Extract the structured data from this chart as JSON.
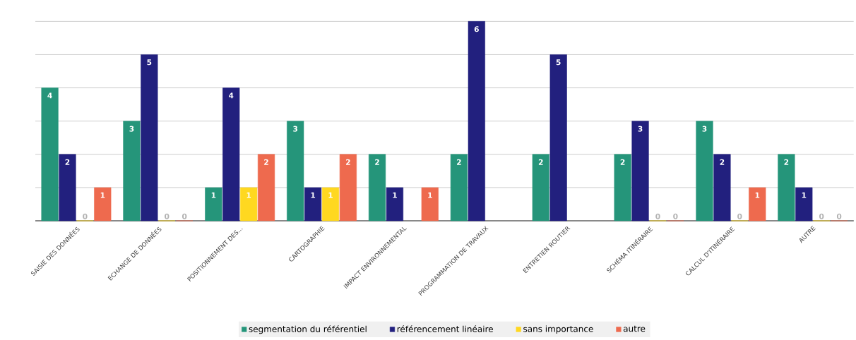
{
  "chart_data": {
    "type": "bar",
    "categories": [
      "SAISIE DES DONNÉES",
      "ECHANGE DE DONNÉES",
      "POSITIONNEMENT DES...",
      "CARTOGRAPHIE",
      "IMPACT ENVIRONNEMENTAL",
      "PROGRAMMATION DE TRAVAUX",
      "ENTRETIEN ROUTIER",
      "SCHÉMA ITINÉRAIRE",
      "CALCUL D'ITINÉRAIRE",
      "AUTRE"
    ],
    "series": [
      {
        "name": "segmentation du référentiel",
        "color": "#25957a",
        "values": [
          4,
          3,
          1,
          3,
          2,
          2,
          2,
          2,
          3,
          2
        ]
      },
      {
        "name": "référencement linéaire",
        "color": "#22207e",
        "values": [
          2,
          5,
          4,
          1,
          1,
          6,
          5,
          3,
          2,
          1
        ]
      },
      {
        "name": "sans importance",
        "color": "#ffd820",
        "values": [
          0,
          0,
          1,
          1,
          null,
          null,
          null,
          0,
          0,
          0
        ]
      },
      {
        "name": "autre",
        "color": "#ee6a4e",
        "values": [
          1,
          0,
          2,
          2,
          1,
          null,
          null,
          0,
          1,
          0
        ]
      }
    ],
    "ylim": [
      0,
      6
    ],
    "yticks": [
      {
        "value": 0,
        "label": null
      },
      {
        "value": 1,
        "label": null
      },
      {
        "value": 2,
        "label": null
      },
      {
        "value": 3,
        "label": null
      },
      {
        "value": 4,
        "label": null
      },
      {
        "value": 5,
        "label": null
      },
      {
        "value": 6,
        "label": null
      }
    ],
    "tick_labels": "x",
    "grid": "y",
    "legend": "bottom",
    "data_labels": true
  }
}
